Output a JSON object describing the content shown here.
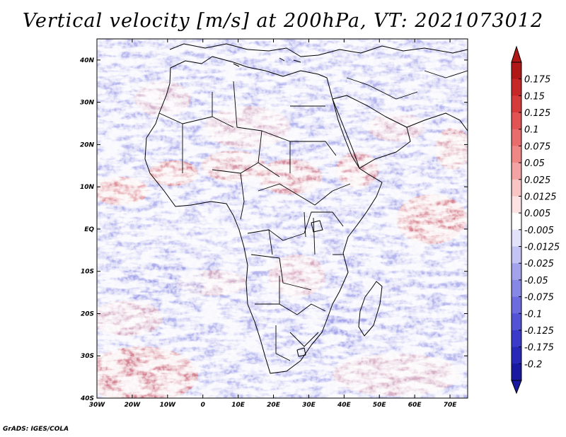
{
  "title": "Vertical velocity [m/s] at 200hPa, VT: 2021073012",
  "credit": "GrADS: IGES/COLA",
  "map": {
    "lat_ticks": [
      "40N",
      "30N",
      "20N",
      "10N",
      "EQ",
      "10S",
      "20S",
      "30S",
      "40S"
    ],
    "lon_ticks": [
      "30W",
      "20W",
      "10W",
      "0",
      "10E",
      "20E",
      "30E",
      "40E",
      "50E",
      "60E",
      "70E"
    ],
    "lon_range": [
      -30,
      75
    ],
    "lat_range": [
      -40,
      45
    ]
  },
  "colorbar": {
    "labels": [
      "0.175",
      "0.15",
      "0.125",
      "0.1",
      "0.075",
      "0.05",
      "0.025",
      "0.0125",
      "0.005",
      "-0.005",
      "-0.0125",
      "-0.025",
      "-0.05",
      "-0.075",
      "-0.1",
      "-0.125",
      "-0.175",
      "-0.2"
    ],
    "colors": [
      "#b01818",
      "#c62828",
      "#d63b3b",
      "#e25353",
      "#e96c6c",
      "#ef8787",
      "#f3a3a3",
      "#f8c4c4",
      "#fce2e2",
      "#ffffff",
      "#e2e2fb",
      "#c4c4f4",
      "#a3a3ec",
      "#8787e6",
      "#6c6cde",
      "#5353d6",
      "#3b3bc9",
      "#2828b8",
      "#1818a0"
    ]
  }
}
